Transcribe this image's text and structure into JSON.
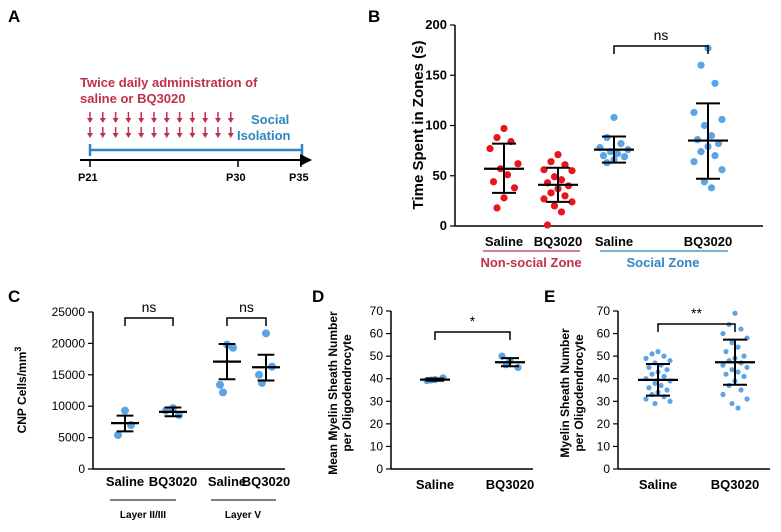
{
  "panel_letters": [
    "A",
    "B",
    "C",
    "D",
    "E"
  ],
  "timeline": {
    "admin_text_line1": "Twice daily administration of",
    "admin_text_line2": "saline or BQ3020",
    "isolation_line1": "Social",
    "isolation_line2": "Isolation",
    "day_labels": [
      "P21",
      "P30",
      "P35"
    ],
    "arrow_count": 12,
    "colors": {
      "admin": "#c0304a",
      "isolation": "#2f86c0",
      "axis": "#000000"
    }
  },
  "colors": {
    "red": "#e8141e",
    "blue": "#5aa5e6",
    "nonsocial_label": "#c0304a",
    "social_label": "#2f86c0",
    "error_bars": "#000000"
  },
  "chart_data": [
    {
      "panel": "B",
      "type": "scatter",
      "ylabel": "Time Spent in Zones (s)",
      "ylim": [
        0,
        200
      ],
      "yticks": [
        0,
        50,
        100,
        150,
        200
      ],
      "categories": [
        "Saline",
        "BQ3020",
        "Saline",
        "BQ3020"
      ],
      "groups": [
        {
          "label": "Non-social Zone",
          "categories": [
            0,
            1
          ],
          "color": "red"
        },
        {
          "label": "Social Zone",
          "categories": [
            2,
            3
          ],
          "color": "blue"
        }
      ],
      "series": [
        {
          "values": [
            97,
            88,
            84,
            77,
            62,
            57,
            51,
            44,
            38,
            28,
            18
          ],
          "mean": 57,
          "sd_low": 33,
          "sd_high": 82,
          "color": "red"
        },
        {
          "values": [
            71,
            64,
            61,
            56,
            55,
            49,
            46,
            43,
            40,
            37,
            33,
            30,
            27,
            24,
            20,
            14,
            1
          ],
          "mean": 41,
          "sd_low": 24,
          "sd_high": 58,
          "color": "red"
        },
        {
          "values": [
            108,
            88,
            82,
            78,
            76,
            74,
            72,
            70,
            69,
            66,
            63
          ],
          "mean": 76,
          "sd_low": 63,
          "sd_high": 89,
          "color": "blue"
        },
        {
          "values": [
            177,
            160,
            142,
            113,
            106,
            100,
            90,
            86,
            82,
            79,
            74,
            70,
            64,
            56,
            44,
            38
          ],
          "mean": 85,
          "sd_low": 47,
          "sd_high": 122,
          "color": "blue"
        }
      ],
      "significance": [
        {
          "between": [
            2,
            3
          ],
          "label": "ns"
        }
      ]
    },
    {
      "panel": "C",
      "type": "scatter",
      "ylabel": "CNP Cells/mm",
      "ylabel_superscript": "3",
      "ylim": [
        0,
        25000
      ],
      "yticks": [
        0,
        5000,
        10000,
        15000,
        20000,
        25000
      ],
      "categories": [
        "Saline",
        "BQ3020",
        "Saline",
        "BQ3020"
      ],
      "groups": [
        {
          "label": "Layer II/III",
          "categories": [
            0,
            1
          ]
        },
        {
          "label": "Layer V",
          "categories": [
            2,
            3
          ]
        }
      ],
      "series": [
        {
          "values": [
            9300,
            7000,
            5400
          ],
          "mean": 7300,
          "sd_low": 6000,
          "sd_high": 8500,
          "color": "blue"
        },
        {
          "values": [
            9700,
            8600,
            9300
          ],
          "mean": 9100,
          "sd_low": 8400,
          "sd_high": 9800,
          "color": "blue"
        },
        {
          "values": [
            19800,
            19300,
            13400,
            12200
          ],
          "mean": 17100,
          "sd_low": 14300,
          "sd_high": 19900,
          "color": "blue"
        },
        {
          "values": [
            21600,
            16300,
            15000,
            13700
          ],
          "mean": 16200,
          "sd_low": 14100,
          "sd_high": 18200,
          "color": "blue"
        }
      ],
      "significance": [
        {
          "between": [
            0,
            1
          ],
          "label": "ns"
        },
        {
          "between": [
            2,
            3
          ],
          "label": "ns"
        }
      ]
    },
    {
      "panel": "D",
      "type": "scatter",
      "ylabel_line1": "Mean Myelin Sheath Number",
      "ylabel_line2": "per Oligodendrocyte",
      "ylim": [
        0,
        70
      ],
      "yticks": [
        0,
        10,
        20,
        30,
        40,
        50,
        60,
        70
      ],
      "categories": [
        "Saline",
        "BQ3020"
      ],
      "series": [
        {
          "values": [
            39.2,
            39.6,
            40.4,
            39.4
          ],
          "mean": 39.6,
          "sd_low": 39.1,
          "sd_high": 40.1,
          "color": "blue"
        },
        {
          "values": [
            50,
            48,
            45,
            46.2
          ],
          "mean": 47.3,
          "sd_low": 45.5,
          "sd_high": 49.1,
          "color": "blue"
        }
      ],
      "significance": [
        {
          "between": [
            0,
            1
          ],
          "label": "*"
        }
      ]
    },
    {
      "panel": "E",
      "type": "scatter",
      "ylabel_line1": "Myelin Sheath Number",
      "ylabel_line2": "per Oligodendrocyte",
      "ylim": [
        0,
        70
      ],
      "yticks": [
        0,
        10,
        20,
        30,
        40,
        50,
        60,
        70
      ],
      "categories": [
        "Saline",
        "BQ3020"
      ],
      "series": [
        {
          "values": [
            52,
            51,
            50,
            49,
            48,
            47,
            46,
            45,
            44,
            43,
            42,
            41,
            40,
            39,
            38,
            37,
            36,
            35,
            34,
            33,
            32,
            31,
            30,
            29
          ],
          "mean": 39.5,
          "sd_low": 32.5,
          "sd_high": 46.5,
          "color": "blue"
        },
        {
          "values": [
            69,
            64,
            62,
            60,
            58,
            56,
            54,
            52,
            50,
            49,
            48,
            47,
            46,
            45,
            44,
            43,
            42,
            41,
            39,
            37,
            35,
            33,
            31,
            29,
            27
          ],
          "mean": 47.3,
          "sd_low": 37.3,
          "sd_high": 57.3,
          "color": "blue"
        }
      ],
      "significance": [
        {
          "between": [
            0,
            1
          ],
          "label": "**"
        }
      ]
    }
  ]
}
